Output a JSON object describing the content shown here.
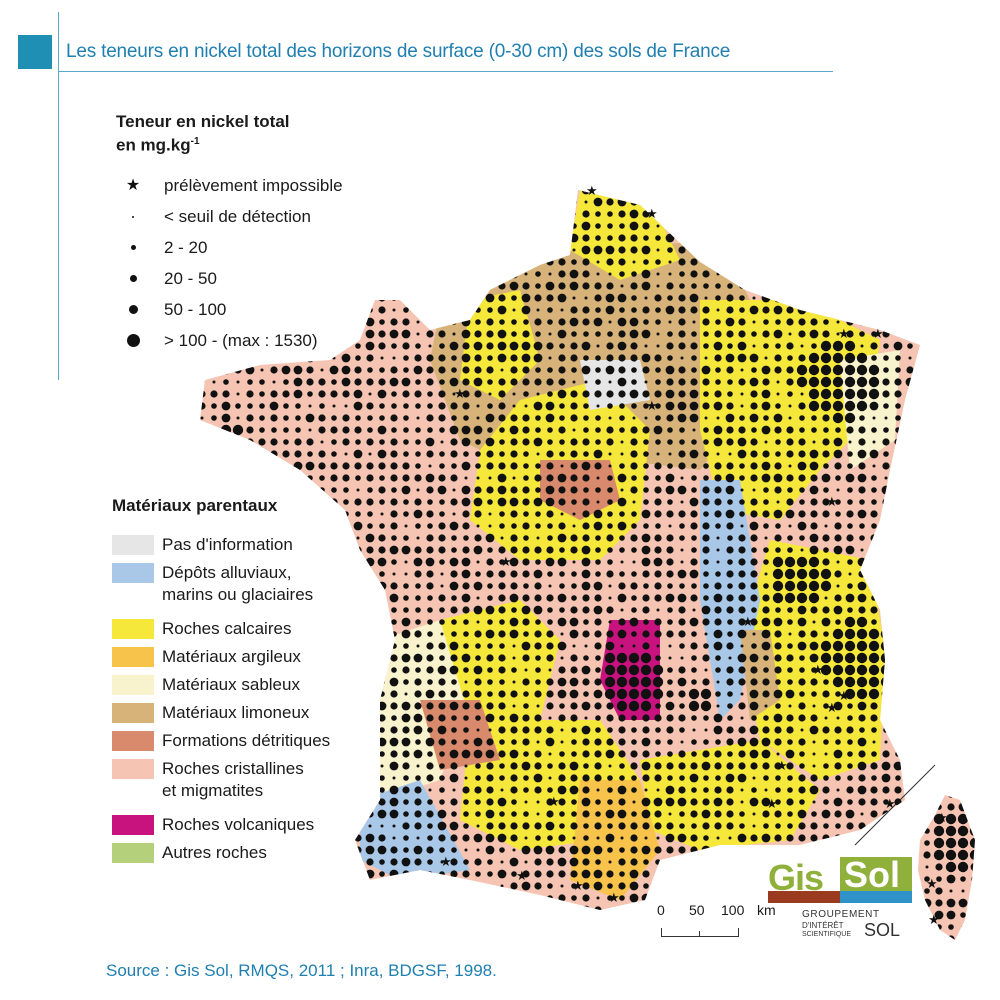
{
  "header": {
    "title": "Les teneurs en nickel total des horizons de surface (0-30 cm) des sols de France"
  },
  "dot_legend": {
    "title_line1": "Teneur en nickel total",
    "title_line2": "en mg.kg",
    "title_sup": "-1",
    "items": [
      {
        "label": "prélèvement impossible",
        "symbol": "star-icon"
      },
      {
        "label": "< seuil de détection",
        "symbol": "dot"
      },
      {
        "label": "2 - 20",
        "symbol": "dot"
      },
      {
        "label": "20 - 50",
        "symbol": "dot"
      },
      {
        "label": "50 - 100",
        "symbol": "dot"
      },
      {
        "label": "> 100 - (max : 1530)",
        "symbol": "dot"
      }
    ]
  },
  "materials_legend": {
    "title": "Matériaux parentaux",
    "items": [
      {
        "label": "Pas d'information",
        "color": "#e6e6e6"
      },
      {
        "label": "Dépôts alluviaux,",
        "label2": "marins ou glaciaires",
        "color": "#a9c8e8"
      },
      {
        "label": "Roches calcaires",
        "color": "#f5e83a"
      },
      {
        "label": "Matériaux argileux",
        "color": "#f7c34a"
      },
      {
        "label": "Matériaux sableux",
        "color": "#f8f3cc"
      },
      {
        "label": "Matériaux limoneux",
        "color": "#d7b37a"
      },
      {
        "label": "Formations détritiques",
        "color": "#d98a6c"
      },
      {
        "label": "Roches cristallines",
        "label2": "et migmatites",
        "color": "#f5c4b3"
      },
      {
        "label": "Roches volcaniques",
        "color": "#c8127e"
      },
      {
        "label": "Autres roches",
        "color": "#b5d07a"
      }
    ]
  },
  "scale": {
    "labels": [
      "0",
      "50",
      "100",
      "km"
    ]
  },
  "logo": {
    "gis": "Gis",
    "sol": "Sol",
    "sub1": "GROUPEMENT",
    "sub2": "D'INTÉRÊT",
    "sub3": "SCIENTIFIQUE",
    "sub4": "SOL"
  },
  "source": "Source : Gis Sol, RMQS, 2011 ; Inra, BDGSF, 1998."
}
